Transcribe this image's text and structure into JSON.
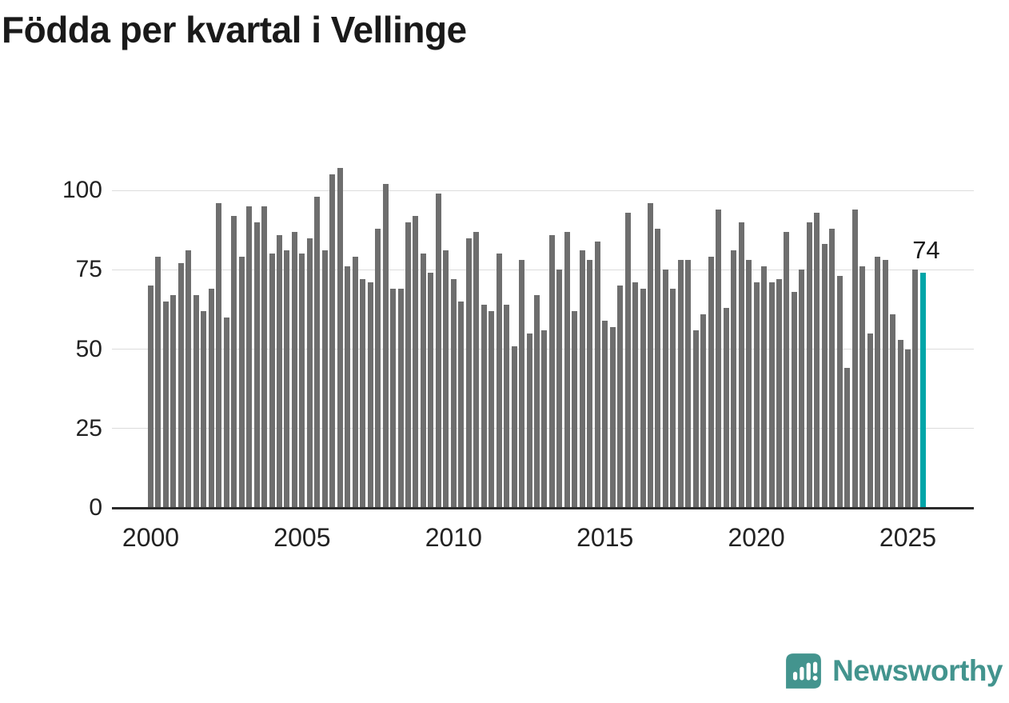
{
  "title": "Födda per kvartal i Vellinge",
  "annotation": {
    "last_value_label": "74"
  },
  "logo": {
    "brand": "Newsworthy"
  },
  "colors": {
    "bar": "#6e6e6e",
    "accent": "#00a5a8",
    "grid": "#dcdcdc",
    "axis": "#2b2b2b",
    "text": "#222222",
    "title": "#1a1a1a",
    "logo": "#43948e"
  },
  "chart_data": {
    "type": "bar",
    "title": "Födda per kvartal i Vellinge",
    "xlabel": "",
    "ylabel": "",
    "x_start": "2000-Q1",
    "x_end": "2025-Q3",
    "x_tick_labels": [
      "2000",
      "2005",
      "2010",
      "2015",
      "2020",
      "2025"
    ],
    "y_ticks": [
      0,
      25,
      50,
      75,
      100
    ],
    "y_tick_labels": [
      "0",
      "25",
      "50",
      "75",
      "100"
    ],
    "ylim": [
      0,
      110
    ],
    "grid": "horizontal",
    "legend": "none",
    "highlight_last": true,
    "values": [
      70,
      79,
      65,
      67,
      77,
      81,
      67,
      62,
      69,
      96,
      60,
      92,
      79,
      95,
      90,
      95,
      80,
      86,
      81,
      87,
      80,
      85,
      98,
      81,
      105,
      107,
      76,
      79,
      72,
      71,
      88,
      102,
      69,
      69,
      90,
      92,
      80,
      74,
      99,
      81,
      72,
      65,
      85,
      87,
      64,
      62,
      80,
      64,
      51,
      78,
      55,
      67,
      56,
      86,
      75,
      87,
      62,
      81,
      78,
      84,
      59,
      57,
      70,
      93,
      71,
      69,
      96,
      88,
      75,
      69,
      78,
      78,
      56,
      61,
      79,
      94,
      63,
      81,
      90,
      78,
      71,
      76,
      71,
      72,
      87,
      68,
      75,
      90,
      93,
      83,
      88,
      73,
      44,
      94,
      76,
      55,
      79,
      78,
      61,
      53,
      50,
      75,
      74
    ]
  }
}
